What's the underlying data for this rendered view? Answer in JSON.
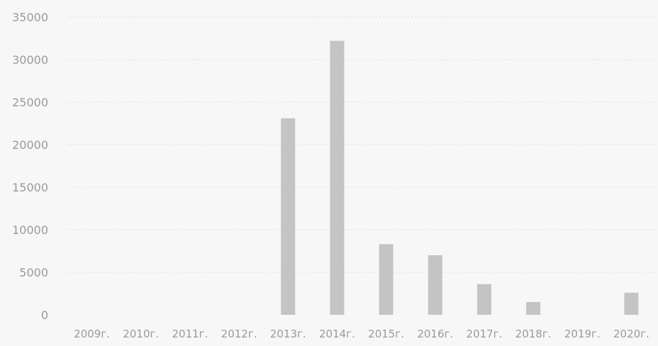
{
  "chart_data": {
    "type": "bar",
    "title": "",
    "xlabel": "",
    "ylabel": "",
    "categories": [
      "2009г.",
      "2010г.",
      "2011г.",
      "2012г.",
      "2013г.",
      "2014г.",
      "2015г.",
      "2016г.",
      "2017г.",
      "2018г.",
      "2019г.",
      "2020г."
    ],
    "values": [
      0,
      0,
      0,
      0,
      23100,
      32200,
      8300,
      7000,
      3600,
      1500,
      0,
      2600
    ],
    "ylim": [
      0,
      35000
    ],
    "yticks": [
      "35000",
      "30000",
      "25000",
      "20000",
      "15000",
      "10000",
      "5000",
      "0"
    ],
    "grid": true,
    "legend": "none",
    "colors": {
      "bar": "#c4c4c4",
      "grid": "#dedede",
      "text": "#9a9a9a",
      "background": "#f7f7f7"
    }
  }
}
